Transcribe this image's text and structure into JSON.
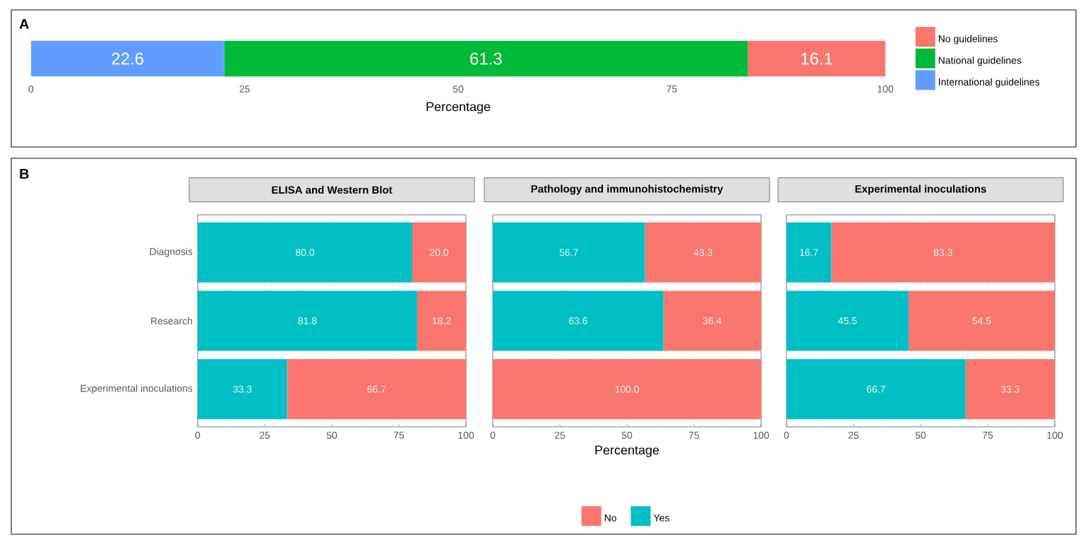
{
  "chart_data": [
    {
      "type": "bar",
      "orientation": "horizontal",
      "stacked": true,
      "annotations": [
        "A"
      ],
      "categories": [
        null
      ],
      "xlabel": "Percentage",
      "xlim": [
        0,
        100
      ],
      "xticks": [
        0,
        25,
        50,
        75,
        100
      ],
      "data_labels": true,
      "legend": "right",
      "series": [
        {
          "name": "International guidelines",
          "color": "#619cff",
          "values": [
            22.6
          ]
        },
        {
          "name": "National guidelines",
          "color": "#00ba38",
          "values": [
            61.3
          ]
        },
        {
          "name": "No guidelines",
          "color": "#f8766d",
          "values": [
            16.1
          ]
        }
      ]
    },
    {
      "type": "bar",
      "orientation": "horizontal",
      "stacked": true,
      "annotations": [
        "B"
      ],
      "title": "ELISA and Western Blot",
      "categories": [
        "Diagnosis",
        "Research",
        "Experimental inoculations"
      ],
      "xlim": [
        0,
        100
      ],
      "xticks": [
        0,
        25,
        50,
        75,
        100
      ],
      "grid": "x",
      "series": [
        {
          "color": "#00bfc4",
          "values": [
            80.0,
            81.8,
            33.3
          ],
          "value_labels": [
            "80.0",
            "81.8",
            "33.3"
          ]
        },
        {
          "color": "#f8766d",
          "values": [
            20.0,
            18.2,
            66.7
          ],
          "value_labels": [
            "20.0",
            "18.2",
            "66.7"
          ]
        }
      ]
    },
    {
      "type": "bar",
      "orientation": "horizontal",
      "stacked": true,
      "title": "Pathology and immunohistochemistry",
      "categories": [
        null,
        null,
        null
      ],
      "xlabel": "Percentage",
      "xlim": [
        0,
        100
      ],
      "xticks": [
        0,
        25,
        50,
        75,
        100
      ],
      "grid": "x",
      "tick_labels": "x",
      "legend": "bottom",
      "series": [
        {
          "name": "Yes",
          "color": "#00bfc4",
          "values": [
            56.7,
            63.6,
            0
          ],
          "value_labels": [
            "56.7",
            "63.6",
            null
          ]
        },
        {
          "name": "No",
          "color": "#f8766d",
          "values": [
            43.3,
            36.4,
            100.0
          ],
          "value_labels": [
            "43.3",
            "36.4",
            "100.0"
          ]
        }
      ]
    },
    {
      "type": "bar",
      "orientation": "horizontal",
      "stacked": true,
      "title": "Experimental inoculations",
      "categories": [
        null,
        null,
        null
      ],
      "xlim": [
        0,
        100
      ],
      "xticks": [
        0,
        25,
        50,
        75,
        100
      ],
      "grid": "x",
      "tick_labels": "x",
      "series": [
        {
          "color": "#00bfc4",
          "values": [
            16.7,
            45.5,
            66.7
          ],
          "value_labels": [
            "16.7",
            "45.5",
            "66.7"
          ]
        },
        {
          "color": "#f8766d",
          "values": [
            83.3,
            54.5,
            33.3
          ],
          "value_labels": [
            "83.3",
            "54.5",
            "33.3"
          ]
        }
      ]
    }
  ]
}
